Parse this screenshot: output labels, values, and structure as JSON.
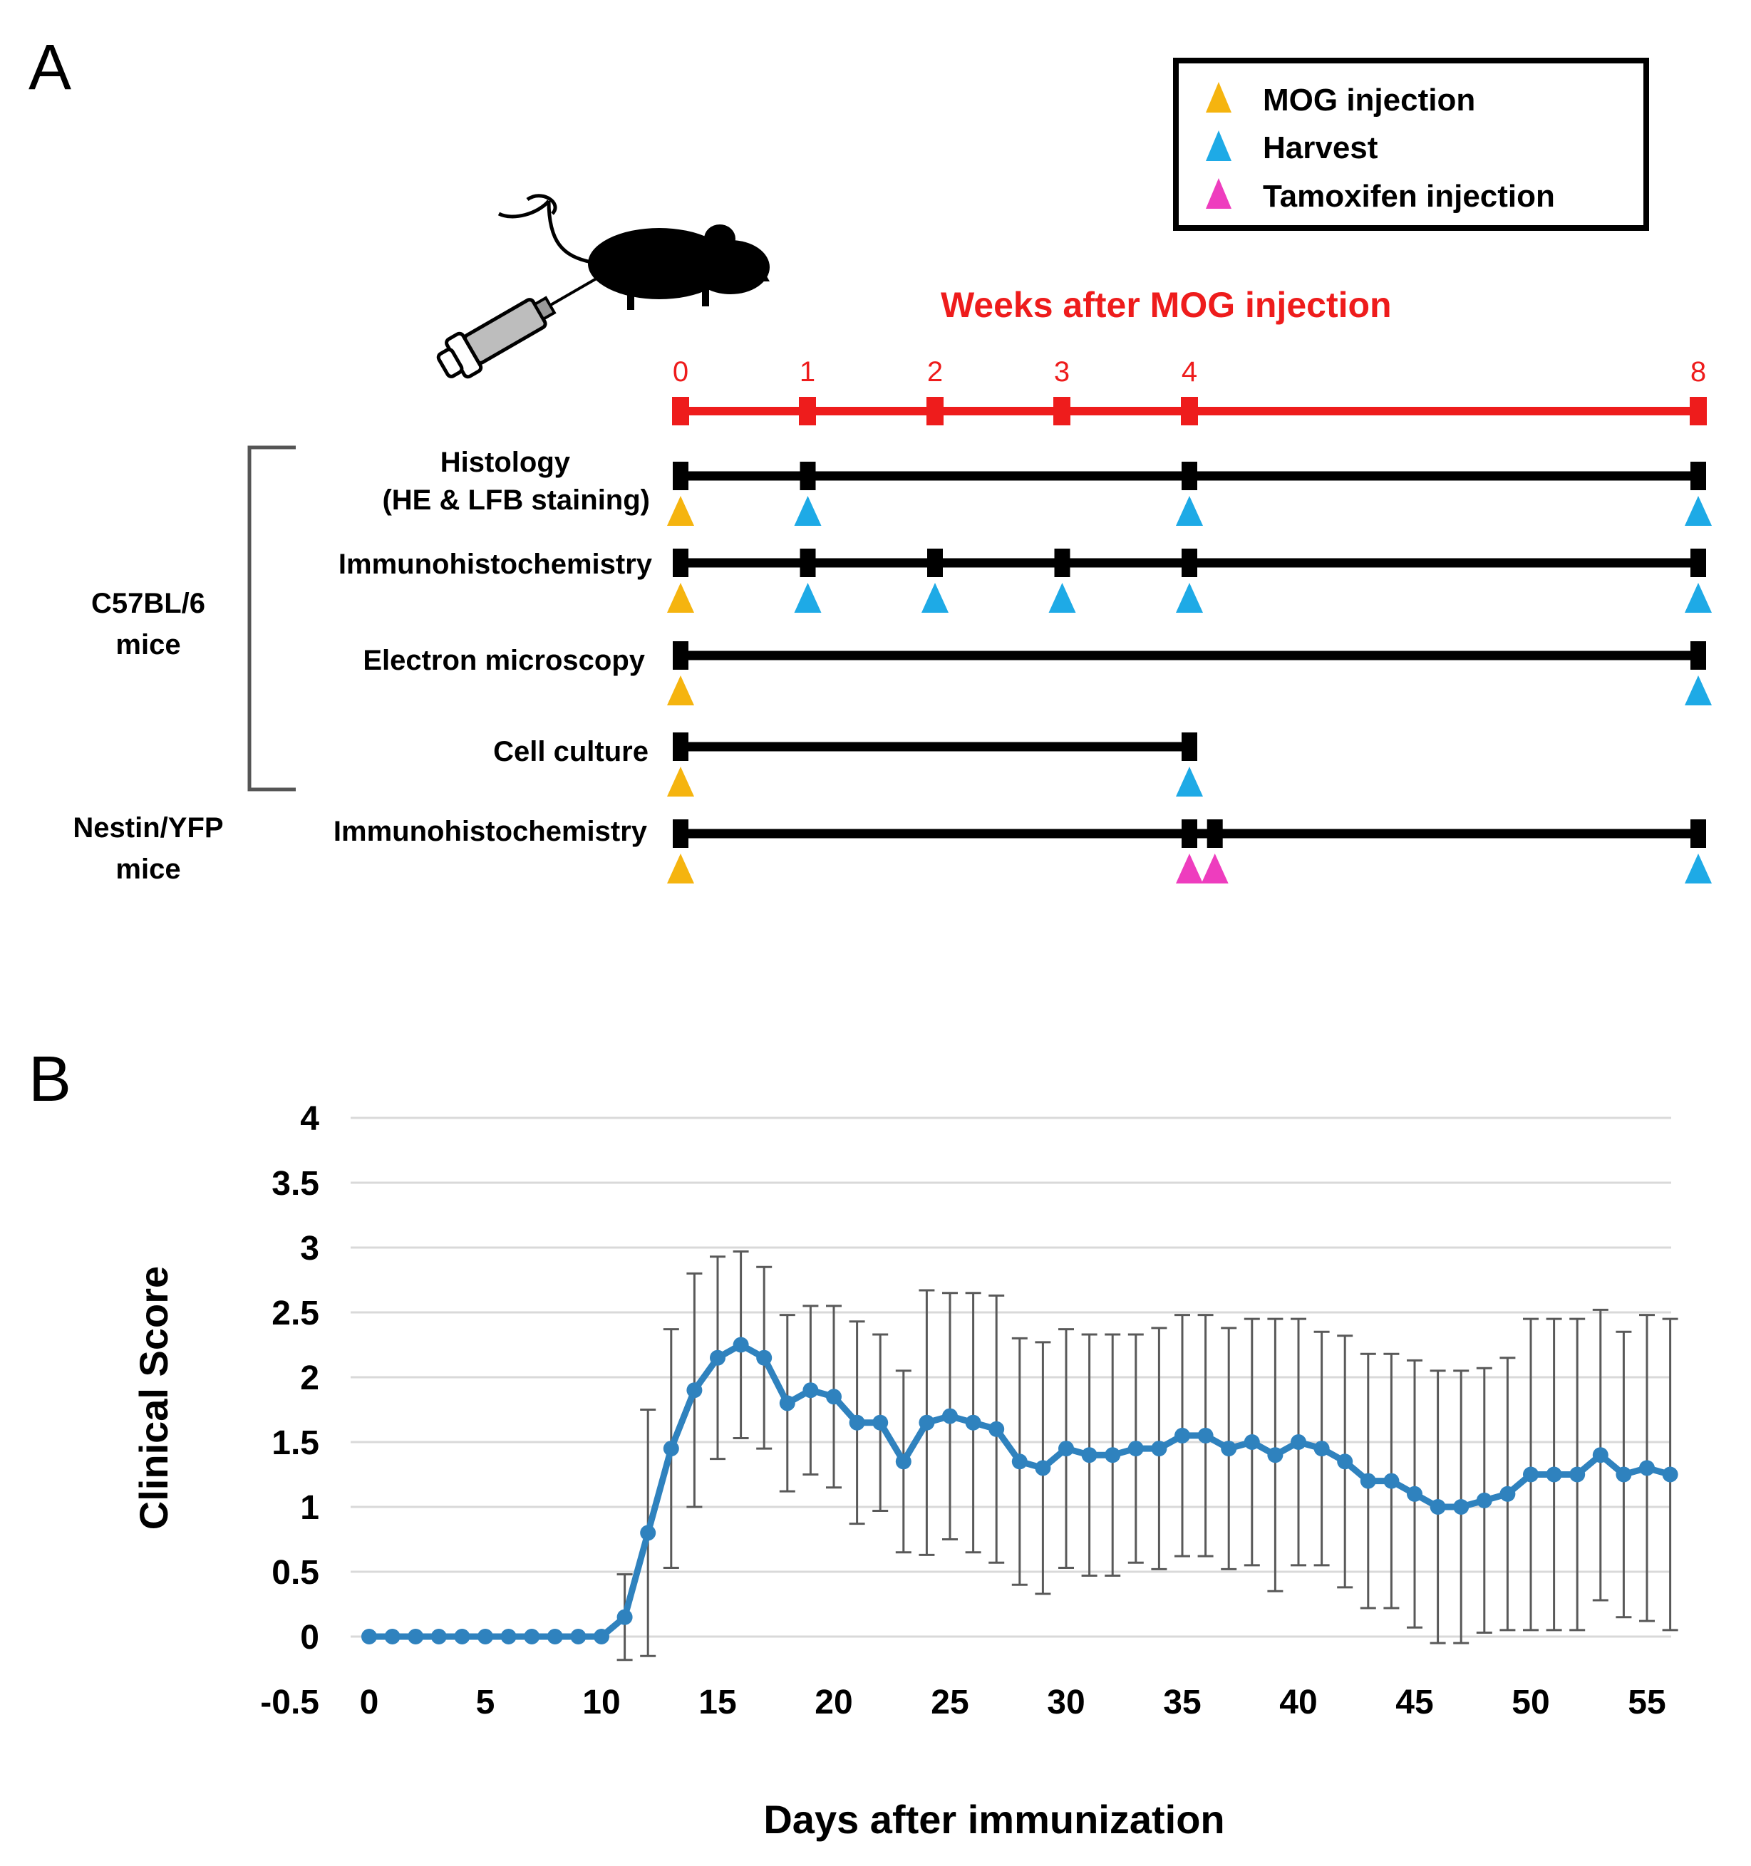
{
  "colors": {
    "mog": "#F5B40F",
    "harvest": "#1EAAE6",
    "tamoxifen": "#EE3DBE",
    "timeline_red": "#EE1C1C",
    "line_blue": "#2F82BE",
    "grid": "#D9D9D9",
    "black": "#000000"
  },
  "panel_a": {
    "label": "A",
    "legend": [
      {
        "key": "mog",
        "label": "MOG injection"
      },
      {
        "key": "harvest",
        "label": "Harvest"
      },
      {
        "key": "tamoxifen",
        "label": "Tamoxifen injection"
      }
    ],
    "axis_title": "Weeks after MOG injection",
    "weeks_shown": [
      0,
      1,
      2,
      3,
      4,
      8
    ],
    "group_c57": [
      "C57BL/6",
      "mice"
    ],
    "group_nestin": [
      "Nestin/YFP",
      "mice"
    ],
    "rows": [
      {
        "label": [
          "Histology",
          "(HE & LFB staining)"
        ],
        "end": 8,
        "ticks": [
          0,
          1,
          4,
          8
        ],
        "markers": [
          {
            "w": 0,
            "t": "mog"
          },
          {
            "w": 1,
            "t": "harvest"
          },
          {
            "w": 4,
            "t": "harvest"
          },
          {
            "w": 8,
            "t": "harvest"
          }
        ]
      },
      {
        "label": [
          "Immunohistochemistry"
        ],
        "end": 8,
        "ticks": [
          0,
          1,
          2,
          3,
          4,
          8
        ],
        "markers": [
          {
            "w": 0,
            "t": "mog"
          },
          {
            "w": 1,
            "t": "harvest"
          },
          {
            "w": 2,
            "t": "harvest"
          },
          {
            "w": 3,
            "t": "harvest"
          },
          {
            "w": 4,
            "t": "harvest"
          },
          {
            "w": 8,
            "t": "harvest"
          }
        ]
      },
      {
        "label": [
          "Electron microscopy"
        ],
        "end": 8,
        "ticks": [
          0,
          8
        ],
        "markers": [
          {
            "w": 0,
            "t": "mog"
          },
          {
            "w": 8,
            "t": "harvest"
          }
        ]
      },
      {
        "label": [
          "Cell culture"
        ],
        "end": 4,
        "ticks": [
          0,
          4
        ],
        "markers": [
          {
            "w": 0,
            "t": "mog"
          },
          {
            "w": 4,
            "t": "harvest"
          }
        ]
      },
      {
        "label": [
          "Immunohistochemistry"
        ],
        "end": 8,
        "ticks": [
          0,
          4,
          4.2,
          8
        ],
        "markers": [
          {
            "w": 0,
            "t": "mog"
          },
          {
            "w": 4,
            "t": "tamoxifen"
          },
          {
            "w": 4.2,
            "t": "tamoxifen"
          },
          {
            "w": 8,
            "t": "harvest"
          }
        ]
      }
    ]
  },
  "panel_b": {
    "label": "B",
    "chart_data": {
      "type": "line",
      "title": "",
      "xlabel": "Days after immunization",
      "ylabel": "Clinical Score",
      "xlim": [
        0,
        56
      ],
      "ylim": [
        -0.5,
        4
      ],
      "xticks": [
        0,
        5,
        10,
        15,
        20,
        25,
        30,
        35,
        40,
        45,
        50,
        55
      ],
      "yticks": [
        -0.5,
        0,
        0.5,
        1,
        1.5,
        2,
        2.5,
        3,
        3.5,
        4
      ],
      "ytick_labels": [
        "-0.5",
        "0",
        "0.5",
        "1",
        "1.5",
        "2",
        "2.5",
        "3",
        "3.5",
        "4"
      ],
      "grid": true,
      "series": [
        {
          "name": "Clinical Score",
          "x": [
            0,
            1,
            2,
            3,
            4,
            5,
            6,
            7,
            8,
            9,
            10,
            11,
            12,
            13,
            14,
            15,
            16,
            17,
            18,
            19,
            20,
            21,
            22,
            23,
            24,
            25,
            26,
            27,
            28,
            29,
            30,
            31,
            32,
            33,
            34,
            35,
            36,
            37,
            38,
            39,
            40,
            41,
            42,
            43,
            44,
            45,
            46,
            47,
            48,
            49,
            50,
            51,
            52,
            53,
            54,
            55,
            56
          ],
          "values": [
            0,
            0,
            0,
            0,
            0,
            0,
            0,
            0,
            0,
            0,
            0,
            0.15,
            0.8,
            1.45,
            1.9,
            2.15,
            2.25,
            2.15,
            1.8,
            1.9,
            1.85,
            1.65,
            1.65,
            1.35,
            1.65,
            1.7,
            1.65,
            1.6,
            1.35,
            1.3,
            1.45,
            1.4,
            1.4,
            1.45,
            1.45,
            1.55,
            1.55,
            1.45,
            1.5,
            1.4,
            1.5,
            1.45,
            1.35,
            1.2,
            1.2,
            1.1,
            1.0,
            1.0,
            1.05,
            1.1,
            1.25,
            1.25,
            1.25,
            1.4,
            1.25,
            1.3,
            1.25
          ],
          "error": [
            0,
            0,
            0,
            0,
            0,
            0,
            0,
            0,
            0,
            0,
            0,
            0.33,
            0.95,
            0.92,
            0.9,
            0.78,
            0.72,
            0.7,
            0.68,
            0.65,
            0.7,
            0.78,
            0.68,
            0.7,
            1.02,
            0.95,
            1.0,
            1.03,
            0.95,
            0.97,
            0.92,
            0.93,
            0.93,
            0.88,
            0.93,
            0.93,
            0.93,
            0.93,
            0.95,
            1.05,
            0.95,
            0.9,
            0.97,
            0.98,
            0.98,
            1.03,
            1.05,
            1.05,
            1.02,
            1.05,
            1.2,
            1.2,
            1.2,
            1.12,
            1.1,
            1.18,
            1.2
          ]
        }
      ]
    }
  }
}
